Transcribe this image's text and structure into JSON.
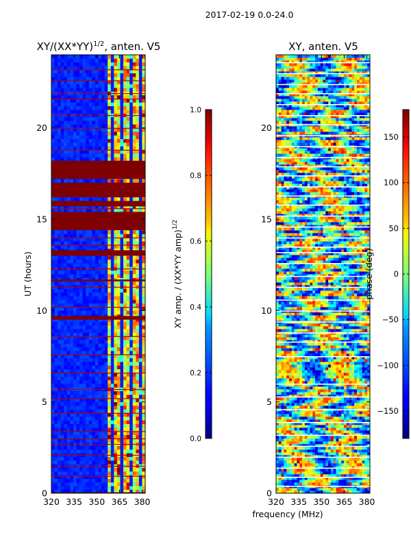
{
  "figure": {
    "suptitle": "2017-02-19 0.0-24.0",
    "shared_xlabel": "frequency (MHz)"
  },
  "chart_data": [
    {
      "type": "heatmap",
      "title_main": "XY/(XX*YY)",
      "title_sup": "1/2",
      "title_tail": ", anten. V5",
      "ylabel": "UT (hours)",
      "xlim": [
        320,
        382
      ],
      "ylim": [
        0,
        24
      ],
      "xticks": [
        320,
        335,
        350,
        365,
        380
      ],
      "yticks": [
        0,
        5,
        10,
        15,
        20
      ],
      "colorbar": {
        "label_main": "XY amp. / (XX*YY amp)",
        "label_sup": "1/2",
        "range": [
          0.0,
          1.0
        ],
        "ticks": [
          "0.0",
          "0.2",
          "0.4",
          "0.6",
          "0.8",
          "1.0"
        ],
        "tick_values": [
          0.0,
          0.2,
          0.4,
          0.6,
          0.8,
          1.0
        ],
        "colormap": "jet"
      },
      "features": {
        "background_level": 0.12,
        "bright_band_mhz": [
          357,
          382
        ],
        "bright_band_level": 0.5,
        "saturated_hours": [
          [
            13.0,
            13.3
          ],
          [
            14.4,
            15.4
          ],
          [
            15.7,
            16.0
          ],
          [
            16.2,
            17.0
          ],
          [
            17.2,
            18.2
          ],
          [
            9.5,
            9.7
          ],
          [
            11.6,
            11.7
          ],
          [
            0.0,
            0.05
          ]
        ],
        "flag_lines_hours": [
          0.95,
          1.5,
          2.1,
          2.7,
          3.0,
          3.4,
          4.4,
          5.2,
          5.7,
          6.6,
          7.6,
          8.6,
          10.2,
          11.3,
          12.3,
          13.6,
          14.0,
          15.6,
          18.8,
          20.0,
          20.7,
          21.6,
          21.9,
          22.6,
          23.2
        ]
      }
    },
    {
      "type": "heatmap",
      "title_main": "XY, anten. V5",
      "xlim": [
        320,
        382
      ],
      "ylim": [
        0,
        24
      ],
      "xticks": [
        320,
        335,
        350,
        365,
        380
      ],
      "yticks": [
        0,
        5,
        10,
        15,
        20
      ],
      "colorbar": {
        "label_main": "phase (deg)",
        "range": [
          -180,
          180
        ],
        "ticks": [
          "−150",
          "−100",
          "−50",
          "0",
          "50",
          "100",
          "150"
        ],
        "tick_values": [
          -150,
          -100,
          -50,
          0,
          50,
          100,
          150
        ],
        "colormap": "jet"
      },
      "features": {
        "gap_lines_hours": [
          0.4,
          0.9,
          1.4,
          2.0,
          2.6,
          3.2,
          3.9,
          4.6,
          5.3,
          6.0,
          7.5,
          8.3,
          8.8,
          9.4,
          10.0,
          10.6,
          11.3,
          11.9,
          12.6,
          13.2,
          13.5,
          14.0,
          14.6,
          15.2,
          15.8,
          16.3,
          16.8,
          17.4,
          17.9,
          18.4,
          19.0,
          19.6,
          20.2,
          20.7,
          21.3,
          21.9,
          22.4,
          23.0,
          23.6
        ]
      }
    }
  ]
}
